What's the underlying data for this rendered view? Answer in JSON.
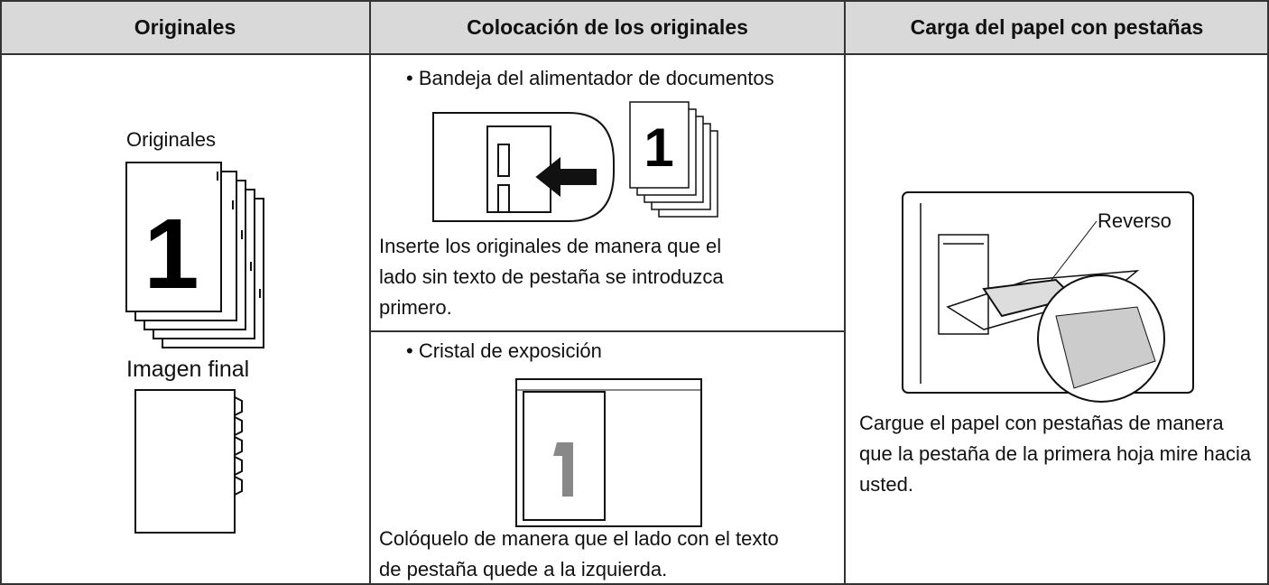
{
  "table": {
    "headers": [
      "Originales",
      "Colocación de los originales",
      "Carga del papel con pestañas"
    ],
    "originals": {
      "label": "Originales",
      "digit": "1",
      "final_label": "Imagen final"
    },
    "placement": {
      "feeder": {
        "title": "• Bandeja del alimentador de documentos",
        "text": "Inserte los originales de manera que el lado sin texto de pestaña se introduzca primero."
      },
      "glass": {
        "title": "• Cristal de exposición",
        "text": "Colóquelo de manera que el lado con el texto de pestaña quede a la izquierda."
      }
    },
    "loading": {
      "callout": "Reverso",
      "text": "Cargue el papel con pestañas de manera que la pestaña de la primera hoja mire hacia usted."
    }
  }
}
